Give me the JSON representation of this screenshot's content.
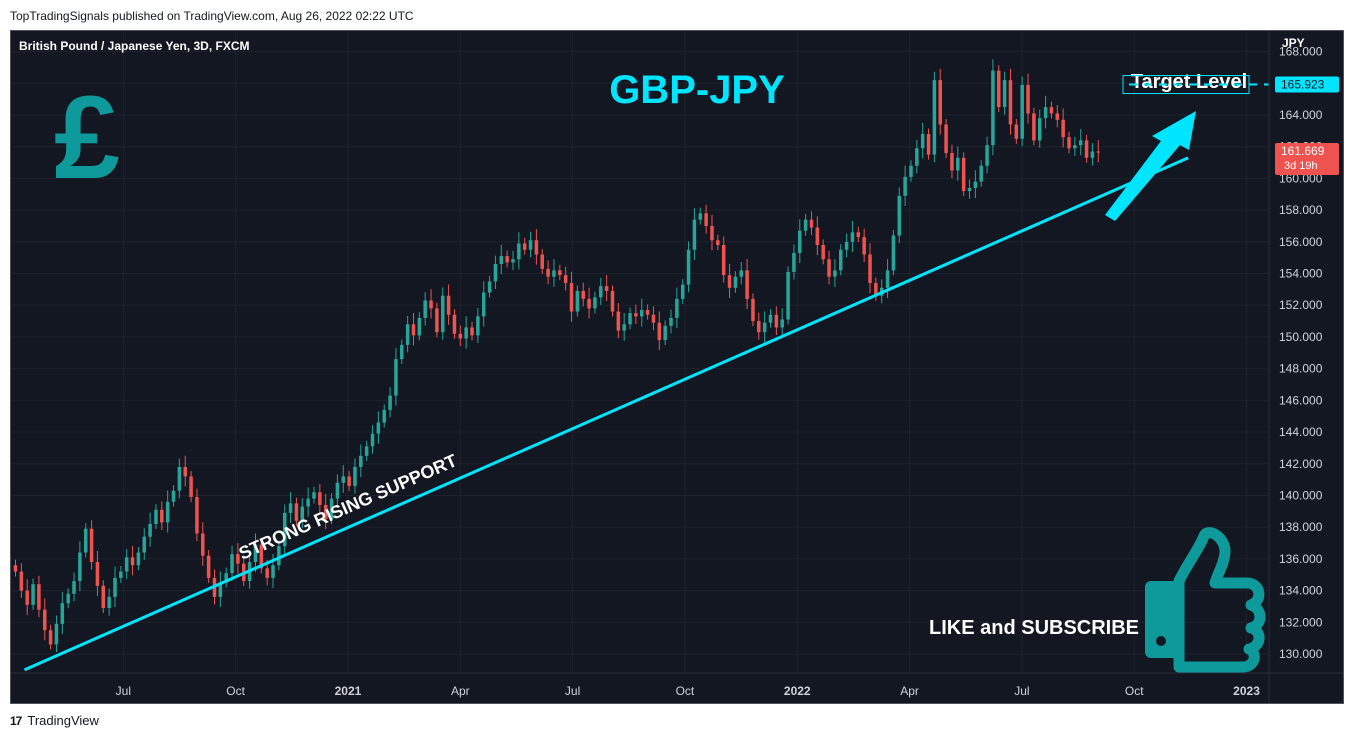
{
  "header": {
    "published": "TopTradingSignals published on TradingView.com, Aug 26, 2022 02:22 UTC"
  },
  "footer": {
    "brand": "TradingView",
    "logo_glyph": "17"
  },
  "colors": {
    "background": "#131722",
    "up": "#26a69a",
    "down": "#ef5350",
    "support": "#00e5ff",
    "title": "#00e5ff",
    "pound": "#0e9a9a",
    "thumb": "#0e9a9a"
  },
  "chart_data": {
    "type": "candlestick",
    "symbol_label": "British Pound / Japanese Yen, 3D, FXCM",
    "currency": "JPY",
    "title": "GBP-JPY",
    "y_ticks": [
      "130.000",
      "132.000",
      "134.000",
      "136.000",
      "138.000",
      "140.000",
      "142.000",
      "144.000",
      "146.000",
      "148.000",
      "150.000",
      "152.000",
      "154.000",
      "156.000",
      "158.000",
      "160.000",
      "162.000",
      "164.000",
      "166.000",
      "168.000"
    ],
    "ylim": [
      128.8,
      169.3
    ],
    "x_ticks": [
      {
        "label": "Jul",
        "t": 2020.5,
        "bold": false
      },
      {
        "label": "Oct",
        "t": 2020.75,
        "bold": false
      },
      {
        "label": "2021",
        "t": 2021.0,
        "bold": true
      },
      {
        "label": "Apr",
        "t": 2021.25,
        "bold": false
      },
      {
        "label": "Jul",
        "t": 2021.5,
        "bold": false
      },
      {
        "label": "Oct",
        "t": 2021.75,
        "bold": false
      },
      {
        "label": "2022",
        "t": 2022.0,
        "bold": true
      },
      {
        "label": "Apr",
        "t": 2022.25,
        "bold": false
      },
      {
        "label": "Jul",
        "t": 2022.5,
        "bold": false
      },
      {
        "label": "Oct",
        "t": 2022.75,
        "bold": false
      },
      {
        "label": "2023",
        "t": 2023.0,
        "bold": true
      }
    ],
    "xlim": [
      2020.25,
      2023.05
    ],
    "closes": [
      135.2,
      134.0,
      133.1,
      134.4,
      132.8,
      131.5,
      130.6,
      131.9,
      133.2,
      133.8,
      134.6,
      136.4,
      137.9,
      135.8,
      134.3,
      132.9,
      133.6,
      134.8,
      135.2,
      136.1,
      135.6,
      136.4,
      137.4,
      138.2,
      139.1,
      138.3,
      139.6,
      140.3,
      141.8,
      141.2,
      139.9,
      137.6,
      136.2,
      134.8,
      133.6,
      134.5,
      135.1,
      136.3,
      135.7,
      134.6,
      135.8,
      136.9,
      135.4,
      134.8,
      135.6,
      136.8,
      138.9,
      139.5,
      138.4,
      139.3,
      139.8,
      140.2,
      139.4,
      138.5,
      139.8,
      140.8,
      141.2,
      140.6,
      141.8,
      142.5,
      143.1,
      143.9,
      144.6,
      145.4,
      146.3,
      148.6,
      149.5,
      150.8,
      150.1,
      151.2,
      152.3,
      151.8,
      150.3,
      152.6,
      151.4,
      150.2,
      149.9,
      150.6,
      150.1,
      151.3,
      152.8,
      153.5,
      154.6,
      155.1,
      154.7,
      154.9,
      155.9,
      155.5,
      156.1,
      155.2,
      154.3,
      153.8,
      154.2,
      153.9,
      153.4,
      151.6,
      152.9,
      152.4,
      151.8,
      152.5,
      153.2,
      152.9,
      151.6,
      150.4,
      150.8,
      151.5,
      151.3,
      151.7,
      151.4,
      150.9,
      149.8,
      150.7,
      151.2,
      152.4,
      153.3,
      155.5,
      157.4,
      157.8,
      157.0,
      156.1,
      155.8,
      153.9,
      153.1,
      153.8,
      154.2,
      152.4,
      151.0,
      150.3,
      150.9,
      151.4,
      150.6,
      151.1,
      154.1,
      155.3,
      156.7,
      157.4,
      156.9,
      155.8,
      154.9,
      153.8,
      154.2,
      155.5,
      156.0,
      156.6,
      156.3,
      155.2,
      153.4,
      152.6,
      153.1,
      154.2,
      156.4,
      158.9,
      160.1,
      160.8,
      161.9,
      162.8,
      161.5,
      166.2,
      163.4,
      161.6,
      160.5,
      161.3,
      159.2,
      159.4,
      159.8,
      160.8,
      162.1,
      166.8,
      164.5,
      166.2,
      163.4,
      162.5,
      165.9,
      164.1,
      162.4,
      163.8,
      164.5,
      164.1,
      163.7,
      162.6,
      161.9,
      162.1,
      162.4,
      161.3,
      161.7,
      161.669
    ],
    "annotations": {
      "target_label": "Target Level",
      "target_price_label": "165.923",
      "target_price": 165.923,
      "current_price": 161.669,
      "current_price_label": "161.669",
      "countdown": "3d 19h",
      "support_label": "STRONG RISING SUPPORT",
      "support_line": [
        {
          "t": 2020.28,
          "price": 129.0
        },
        {
          "t": 2022.87,
          "price": 161.3
        }
      ],
      "cta": "LIKE and SUBSCRIBE",
      "pound_glyph": "£"
    }
  }
}
